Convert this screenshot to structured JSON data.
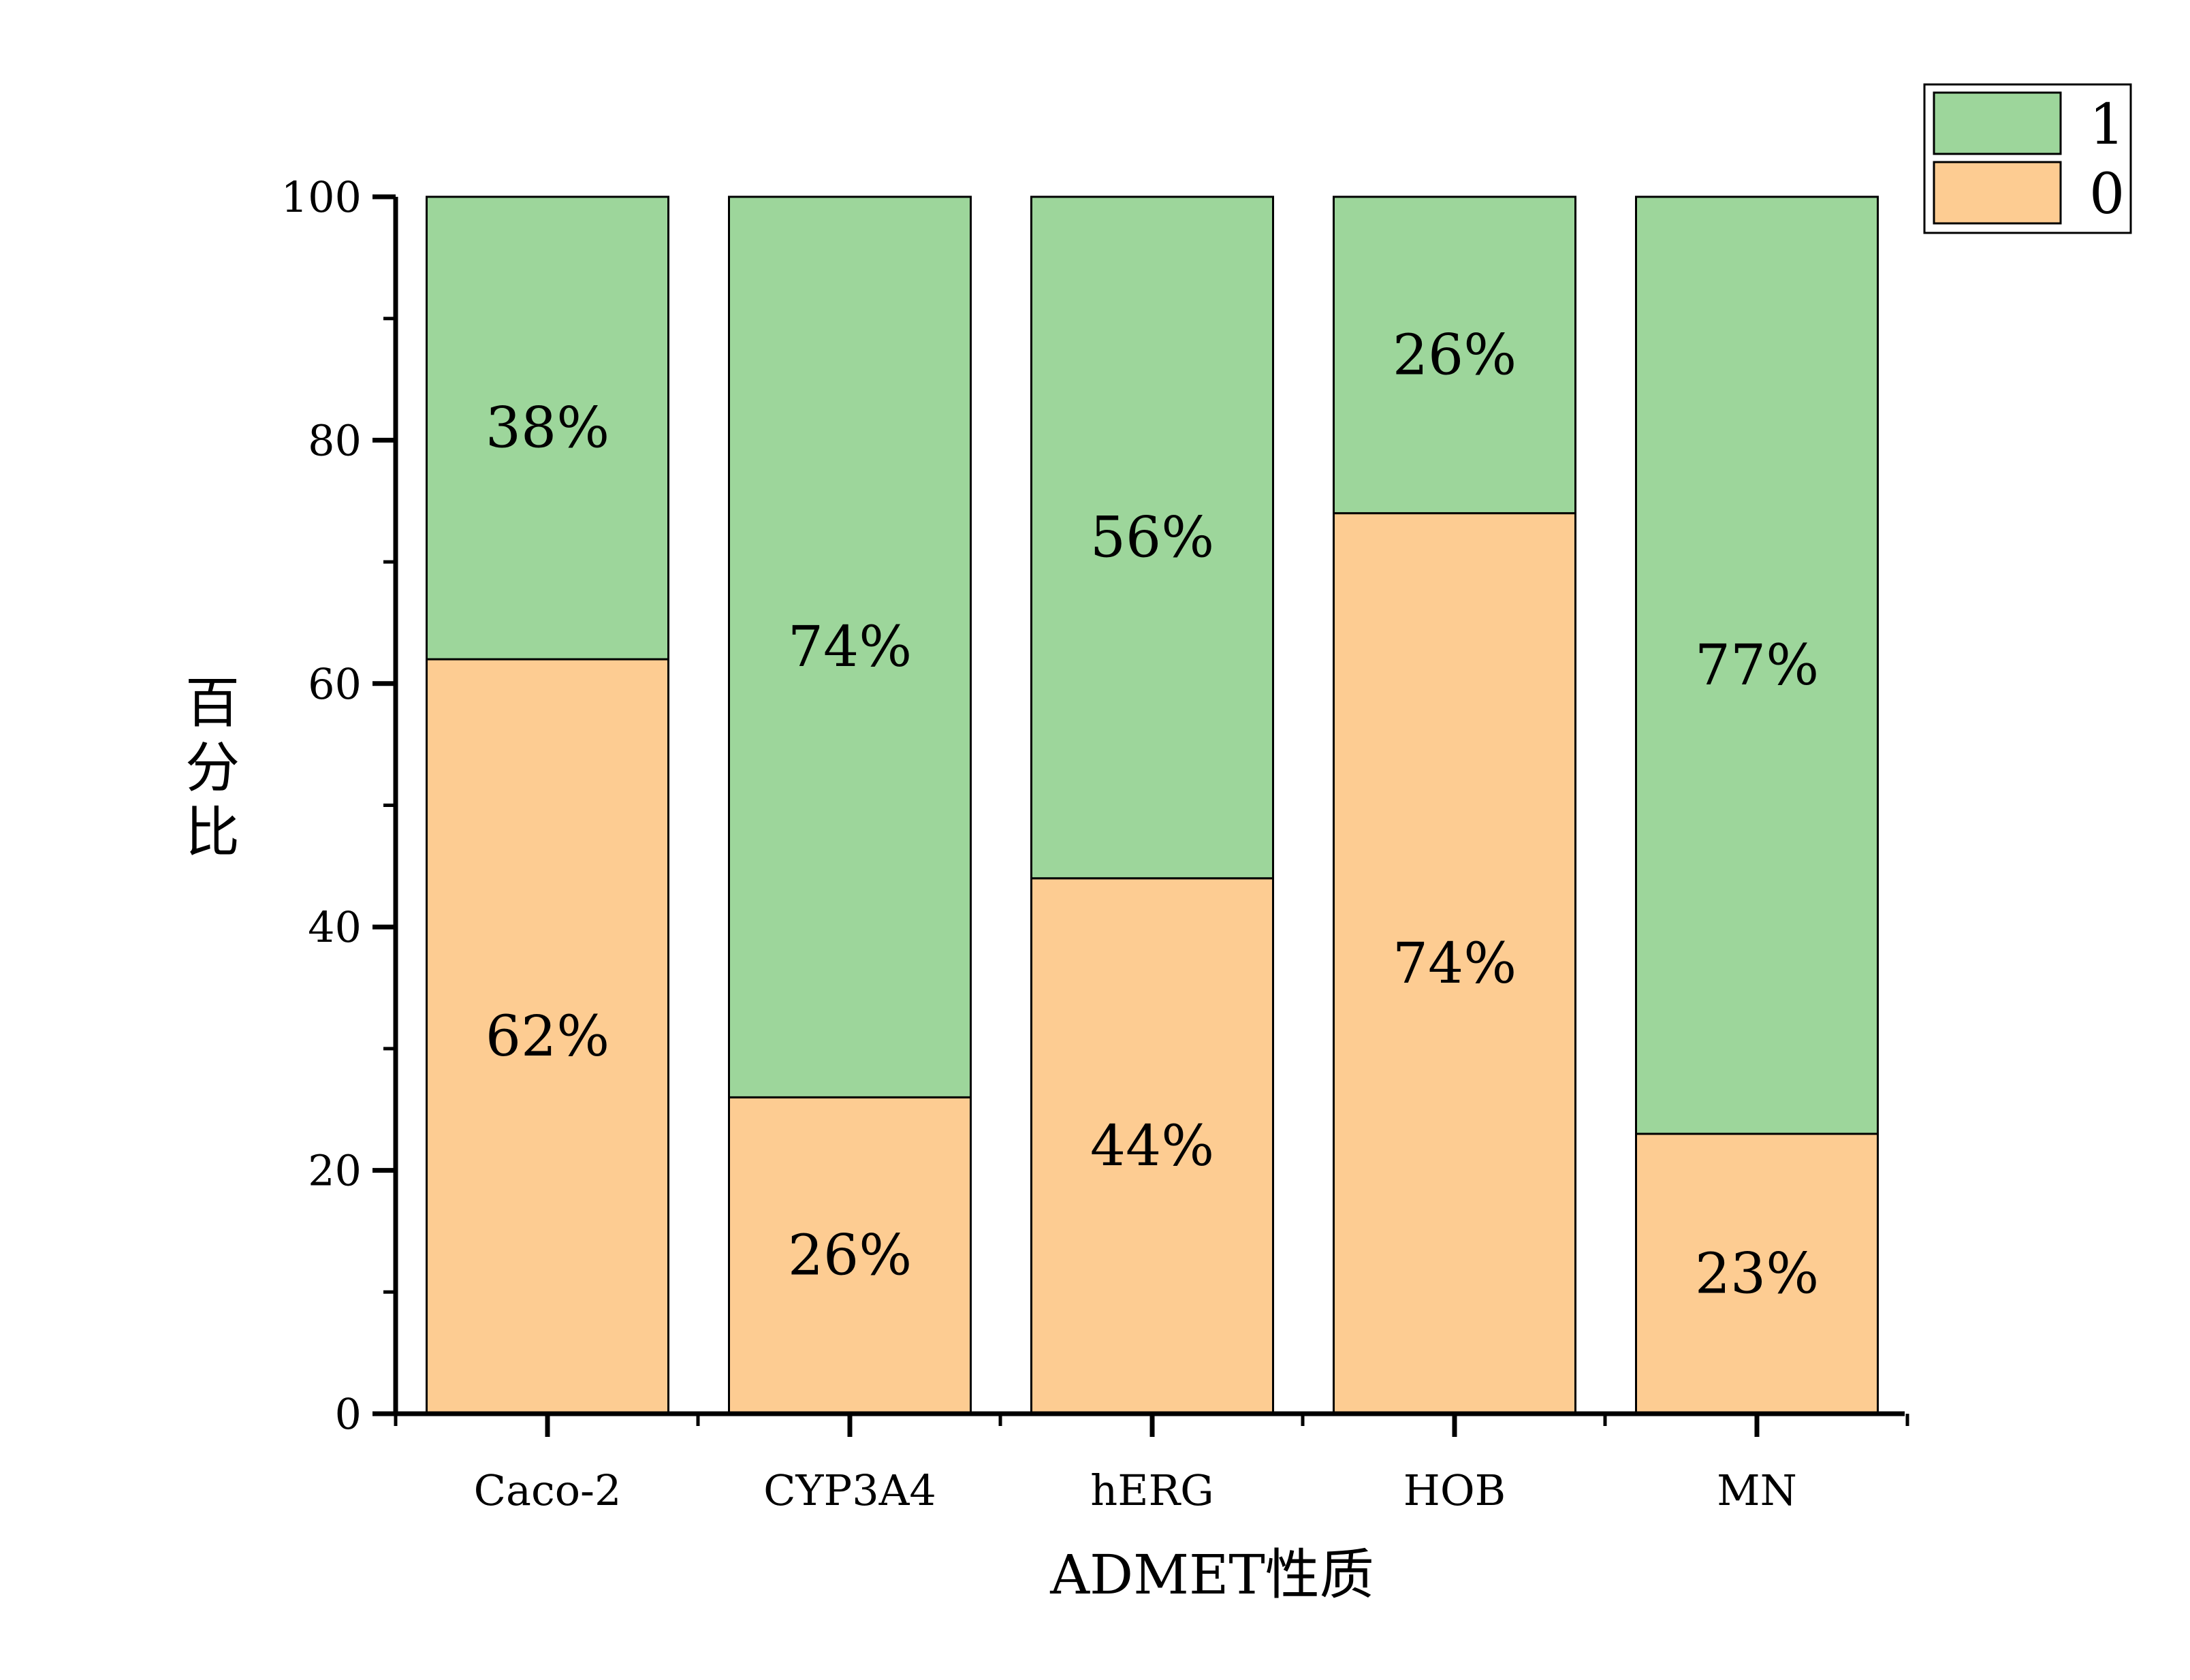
{
  "chart_data": {
    "type": "bar",
    "stacked": true,
    "title": "",
    "xlabel": "ADMET性质",
    "ylabel": "百分比",
    "ylim": [
      0,
      100
    ],
    "yticks": [
      "0",
      "20",
      "40",
      "60",
      "80",
      "100"
    ],
    "categories": [
      "Caco-2",
      "CYP3A4",
      "hERG",
      "HOB",
      "MN"
    ],
    "series": [
      {
        "name": "0",
        "color": "#FDCC92",
        "values": [
          62,
          26,
          44,
          74,
          23
        ],
        "labels": [
          "62%",
          "26%",
          "44%",
          "74%",
          "23%"
        ]
      },
      {
        "name": "1",
        "color": "#9DD69B",
        "values": [
          38,
          74,
          56,
          26,
          77
        ],
        "labels": [
          "38%",
          "74%",
          "56%",
          "26%",
          "77%"
        ]
      }
    ],
    "legend": {
      "position": "top-right",
      "order": [
        "1",
        "0"
      ]
    },
    "grid": false
  }
}
